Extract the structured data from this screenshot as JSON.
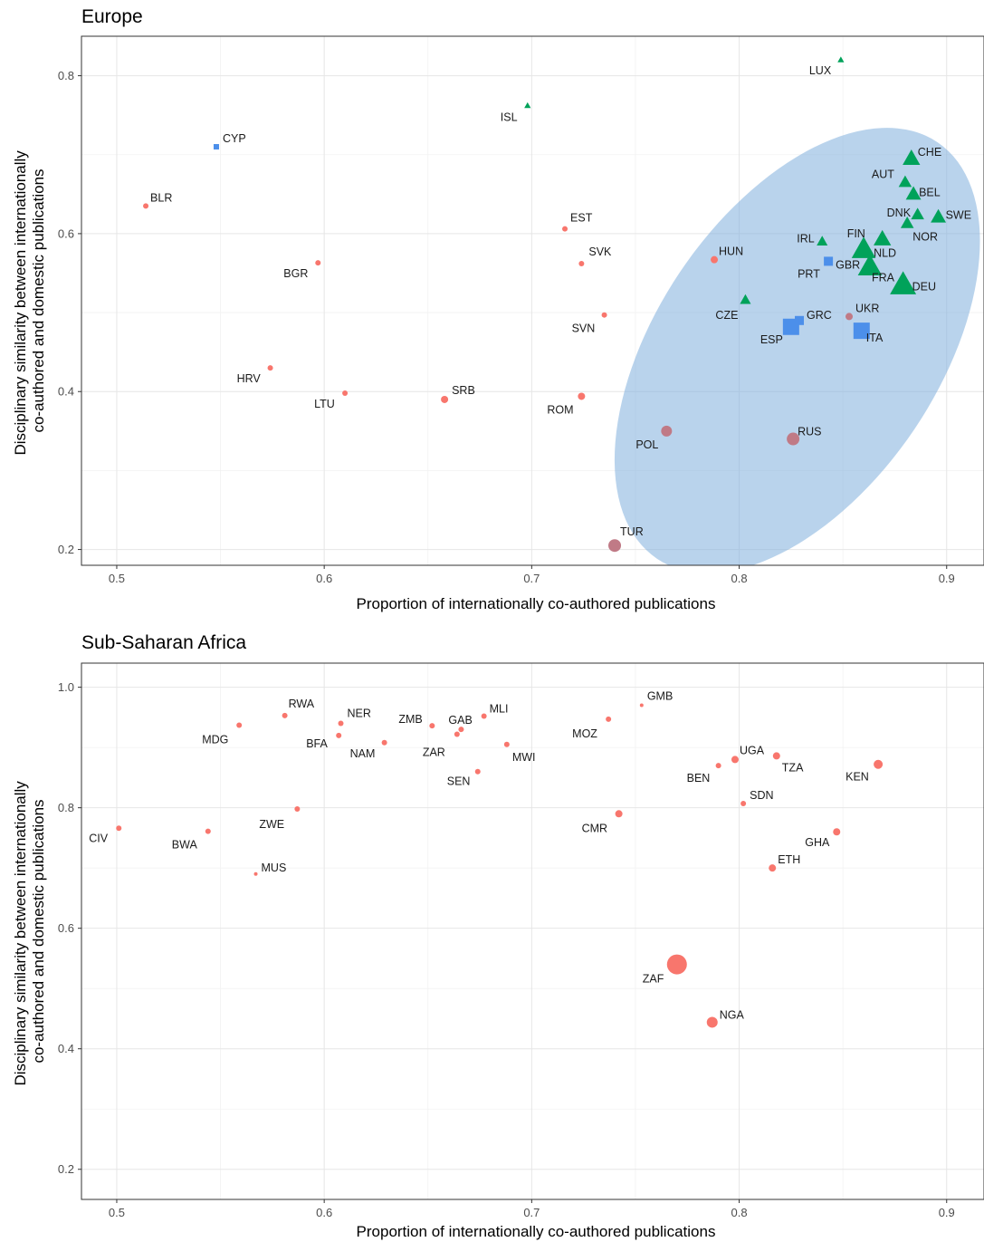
{
  "colors": {
    "red": "#F8766D",
    "green": "#00A25A",
    "blue": "#4C8FEA",
    "highlight_red": "#C07A86",
    "ellipse_fill": "#7FAEDD"
  },
  "chart_data": [
    {
      "type": "scatter",
      "title": "Europe",
      "xlabel": "Proportion of internationally co-authored publications",
      "ylabel": [
        "Disciplinary similarity between internationally",
        "co-authored and domestic publications"
      ],
      "xlim": [
        0.483,
        0.918
      ],
      "ylim": [
        0.18,
        0.85
      ],
      "xticks": [
        0.5,
        0.6,
        0.7,
        0.8,
        0.9
      ],
      "xtick_labels": [
        "0.5",
        "0.6",
        "0.7",
        "0.8",
        "0.9"
      ],
      "yticks": [
        0.2,
        0.4,
        0.6,
        0.8
      ],
      "ytick_labels": [
        "0.2",
        "0.4",
        "0.6",
        "0.8"
      ],
      "grid": true,
      "ellipse": {
        "cx": 0.828,
        "cy": 0.452,
        "rx_data": 0.068,
        "ry_data": 0.318,
        "rotation_deg": 34
      },
      "points": [
        {
          "label": "LUX",
          "x": 0.849,
          "y": 0.82,
          "shape": "triangle",
          "color": "green",
          "size": 3
        },
        {
          "label": "ISL",
          "x": 0.698,
          "y": 0.762,
          "shape": "triangle",
          "color": "green",
          "size": 3
        },
        {
          "label": "CYP",
          "x": 0.548,
          "y": 0.71,
          "shape": "square",
          "color": "blue",
          "size": 3
        },
        {
          "label": "BLR",
          "x": 0.514,
          "y": 0.635,
          "shape": "circle",
          "color": "red",
          "size": 3
        },
        {
          "label": "BGR",
          "x": 0.597,
          "y": 0.563,
          "shape": "circle",
          "color": "red",
          "size": 3
        },
        {
          "label": "HRV",
          "x": 0.574,
          "y": 0.43,
          "shape": "circle",
          "color": "red",
          "size": 3
        },
        {
          "label": "LTU",
          "x": 0.61,
          "y": 0.398,
          "shape": "circle",
          "color": "red",
          "size": 3
        },
        {
          "label": "SRB",
          "x": 0.658,
          "y": 0.39,
          "shape": "circle",
          "color": "red",
          "size": 4
        },
        {
          "label": "EST",
          "x": 0.716,
          "y": 0.606,
          "shape": "circle",
          "color": "red",
          "size": 3
        },
        {
          "label": "SVK",
          "x": 0.724,
          "y": 0.562,
          "shape": "circle",
          "color": "red",
          "size": 3
        },
        {
          "label": "SVN",
          "x": 0.735,
          "y": 0.497,
          "shape": "circle",
          "color": "red",
          "size": 3
        },
        {
          "label": "ROM",
          "x": 0.724,
          "y": 0.394,
          "shape": "circle",
          "color": "red",
          "size": 4
        },
        {
          "label": "HUN",
          "x": 0.788,
          "y": 0.567,
          "shape": "circle",
          "color": "red",
          "size": 4
        },
        {
          "label": "POL",
          "x": 0.765,
          "y": 0.35,
          "shape": "circle",
          "color": "highlight_red",
          "size": 6
        },
        {
          "label": "RUS",
          "x": 0.826,
          "y": 0.34,
          "shape": "circle",
          "color": "highlight_red",
          "size": 7
        },
        {
          "label": "TUR",
          "x": 0.74,
          "y": 0.205,
          "shape": "circle",
          "color": "highlight_red",
          "size": 7
        },
        {
          "label": "UKR",
          "x": 0.853,
          "y": 0.495,
          "shape": "circle",
          "color": "highlight_red",
          "size": 4
        },
        {
          "label": "CZE",
          "x": 0.803,
          "y": 0.516,
          "shape": "triangle",
          "color": "green",
          "size": 5
        },
        {
          "label": "IRL",
          "x": 0.84,
          "y": 0.59,
          "shape": "triangle",
          "color": "green",
          "size": 5
        },
        {
          "label": "CHE",
          "x": 0.883,
          "y": 0.695,
          "shape": "triangle",
          "color": "green",
          "size": 8
        },
        {
          "label": "AUT",
          "x": 0.88,
          "y": 0.665,
          "shape": "triangle",
          "color": "green",
          "size": 6
        },
        {
          "label": "BEL",
          "x": 0.884,
          "y": 0.65,
          "shape": "triangle",
          "color": "green",
          "size": 7
        },
        {
          "label": "DNK",
          "x": 0.886,
          "y": 0.624,
          "shape": "triangle",
          "color": "green",
          "size": 6
        },
        {
          "label": "NOR",
          "x": 0.881,
          "y": 0.613,
          "shape": "triangle",
          "color": "green",
          "size": 6
        },
        {
          "label": "SWE",
          "x": 0.896,
          "y": 0.621,
          "shape": "triangle",
          "color": "green",
          "size": 7
        },
        {
          "label": "FIN",
          "x": 0.869,
          "y": 0.593,
          "shape": "triangle",
          "color": "green",
          "size": 8
        },
        {
          "label": "NLD",
          "x": 0.86,
          "y": 0.58,
          "shape": "triangle",
          "color": "green",
          "size": 11
        },
        {
          "label": "FRA",
          "x": 0.863,
          "y": 0.558,
          "shape": "triangle",
          "color": "green",
          "size": 11
        },
        {
          "label": "DEU",
          "x": 0.879,
          "y": 0.535,
          "shape": "triangle",
          "color": "green",
          "size": 12
        },
        {
          "label": "GBR",
          "x": 0.843,
          "y": 0.565,
          "shape": "square",
          "color": "blue",
          "size": 5
        },
        {
          "label": "PRT",
          "x": 0.843,
          "y": 0.565,
          "shape": "none",
          "color": "blue",
          "size": 0
        },
        {
          "label": "GRC",
          "x": 0.829,
          "y": 0.49,
          "shape": "square",
          "color": "blue",
          "size": 5
        },
        {
          "label": "ESP",
          "x": 0.825,
          "y": 0.482,
          "shape": "square",
          "color": "blue",
          "size": 9
        },
        {
          "label": "ITA",
          "x": 0.859,
          "y": 0.477,
          "shape": "square",
          "color": "blue",
          "size": 9
        }
      ]
    },
    {
      "type": "scatter",
      "title": "Sub-Saharan Africa",
      "xlabel": "Proportion of internationally co-authored publications",
      "ylabel": [
        "Disciplinary similarity between internationally",
        "co-authored and domestic publications"
      ],
      "xlim": [
        0.483,
        0.918
      ],
      "ylim": [
        0.15,
        1.04
      ],
      "xticks": [
        0.5,
        0.6,
        0.7,
        0.8,
        0.9
      ],
      "xtick_labels": [
        "0.5",
        "0.6",
        "0.7",
        "0.8",
        "0.9"
      ],
      "yticks": [
        0.2,
        0.4,
        0.6,
        0.8,
        1.0
      ],
      "ytick_labels": [
        "0.2",
        "0.4",
        "0.6",
        "0.8",
        "1.0"
      ],
      "grid": true,
      "points": [
        {
          "label": "RWA",
          "x": 0.581,
          "y": 0.953,
          "shape": "circle",
          "color": "red",
          "size": 3
        },
        {
          "label": "NER",
          "x": 0.608,
          "y": 0.94,
          "shape": "circle",
          "color": "red",
          "size": 3
        },
        {
          "label": "MDG",
          "x": 0.559,
          "y": 0.937,
          "shape": "circle",
          "color": "red",
          "size": 3
        },
        {
          "label": "ZMB",
          "x": 0.652,
          "y": 0.936,
          "shape": "circle",
          "color": "red",
          "size": 3
        },
        {
          "label": "GAB",
          "x": 0.666,
          "y": 0.93,
          "shape": "circle",
          "color": "red",
          "size": 3
        },
        {
          "label": "MLI",
          "x": 0.677,
          "y": 0.952,
          "shape": "circle",
          "color": "red",
          "size": 3
        },
        {
          "label": "ZAR",
          "x": 0.664,
          "y": 0.922,
          "shape": "circle",
          "color": "red",
          "size": 3
        },
        {
          "label": "BFA",
          "x": 0.607,
          "y": 0.92,
          "shape": "circle",
          "color": "red",
          "size": 3
        },
        {
          "label": "NAM",
          "x": 0.629,
          "y": 0.908,
          "shape": "circle",
          "color": "red",
          "size": 3
        },
        {
          "label": "MWI",
          "x": 0.688,
          "y": 0.905,
          "shape": "circle",
          "color": "red",
          "size": 3
        },
        {
          "label": "SEN",
          "x": 0.674,
          "y": 0.86,
          "shape": "circle",
          "color": "red",
          "size": 3
        },
        {
          "label": "MOZ",
          "x": 0.737,
          "y": 0.947,
          "shape": "circle",
          "color": "red",
          "size": 3
        },
        {
          "label": "GMB",
          "x": 0.753,
          "y": 0.97,
          "shape": "circle",
          "color": "red",
          "size": 2
        },
        {
          "label": "UGA",
          "x": 0.798,
          "y": 0.88,
          "shape": "circle",
          "color": "red",
          "size": 4
        },
        {
          "label": "BEN",
          "x": 0.79,
          "y": 0.87,
          "shape": "circle",
          "color": "red",
          "size": 3
        },
        {
          "label": "TZA",
          "x": 0.818,
          "y": 0.886,
          "shape": "circle",
          "color": "red",
          "size": 4
        },
        {
          "label": "KEN",
          "x": 0.867,
          "y": 0.872,
          "shape": "circle",
          "color": "red",
          "size": 5
        },
        {
          "label": "SDN",
          "x": 0.802,
          "y": 0.807,
          "shape": "circle",
          "color": "red",
          "size": 3
        },
        {
          "label": "CMR",
          "x": 0.742,
          "y": 0.79,
          "shape": "circle",
          "color": "red",
          "size": 4
        },
        {
          "label": "GHA",
          "x": 0.847,
          "y": 0.76,
          "shape": "circle",
          "color": "red",
          "size": 4
        },
        {
          "label": "ETH",
          "x": 0.816,
          "y": 0.7,
          "shape": "circle",
          "color": "red",
          "size": 4
        },
        {
          "label": "ZWE",
          "x": 0.587,
          "y": 0.798,
          "shape": "circle",
          "color": "red",
          "size": 3
        },
        {
          "label": "CIV",
          "x": 0.501,
          "y": 0.766,
          "shape": "circle",
          "color": "red",
          "size": 3
        },
        {
          "label": "BWA",
          "x": 0.544,
          "y": 0.761,
          "shape": "circle",
          "color": "red",
          "size": 3
        },
        {
          "label": "MUS",
          "x": 0.567,
          "y": 0.69,
          "shape": "circle",
          "color": "red",
          "size": 2
        },
        {
          "label": "ZAF",
          "x": 0.77,
          "y": 0.54,
          "shape": "circle",
          "color": "red",
          "size": 11
        },
        {
          "label": "NGA",
          "x": 0.787,
          "y": 0.444,
          "shape": "circle",
          "color": "red",
          "size": 6
        }
      ]
    }
  ]
}
